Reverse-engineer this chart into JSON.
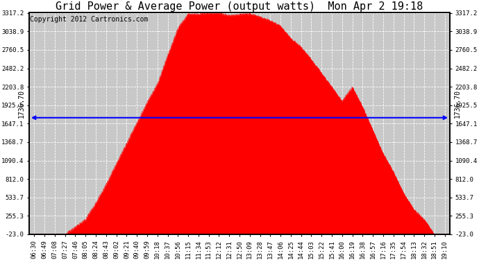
{
  "title": "Grid Power & Average Power (output watts)  Mon Apr 2 19:18",
  "copyright": "Copyright 2012 Cartronics.com",
  "avg_line_value": 1736.7,
  "avg_label": "1736.70",
  "y_min": -23.0,
  "y_max": 3317.2,
  "yticks": [
    -23.0,
    255.3,
    533.7,
    812.0,
    1090.4,
    1368.7,
    1647.1,
    1925.5,
    2203.8,
    2482.2,
    2760.5,
    3038.9,
    3317.2
  ],
  "fill_color": "#FF0000",
  "line_color": "#FF0000",
  "avg_line_color": "#0000FF",
  "background_color": "#FFFFFF",
  "plot_bg_color": "#C8C8C8",
  "grid_color": "#FFFFFF",
  "xtick_labels": [
    "06:30",
    "06:49",
    "07:08",
    "07:27",
    "07:46",
    "08:05",
    "08:24",
    "08:43",
    "09:02",
    "09:21",
    "09:40",
    "09:59",
    "10:18",
    "10:37",
    "10:56",
    "11:15",
    "11:34",
    "11:53",
    "12:12",
    "12:31",
    "12:50",
    "13:09",
    "13:28",
    "13:47",
    "14:06",
    "14:25",
    "14:44",
    "15:03",
    "15:22",
    "15:41",
    "16:00",
    "16:19",
    "16:38",
    "16:57",
    "17:16",
    "17:35",
    "17:54",
    "18:13",
    "18:32",
    "18:51",
    "19:10"
  ],
  "title_fontsize": 11,
  "tick_fontsize": 6.5,
  "copyright_fontsize": 7,
  "curve_y": [
    -23,
    -23,
    -23,
    -23,
    60,
    200,
    450,
    750,
    1050,
    1350,
    1650,
    1950,
    2250,
    2700,
    3100,
    3280,
    3310,
    3320,
    3315,
    3300,
    3290,
    3280,
    3270,
    3200,
    3100,
    2950,
    2800,
    2600,
    2400,
    2200,
    2000,
    2150,
    1800,
    1550,
    1200,
    900,
    580,
    320,
    200,
    -23,
    -23
  ],
  "n_points": 41
}
